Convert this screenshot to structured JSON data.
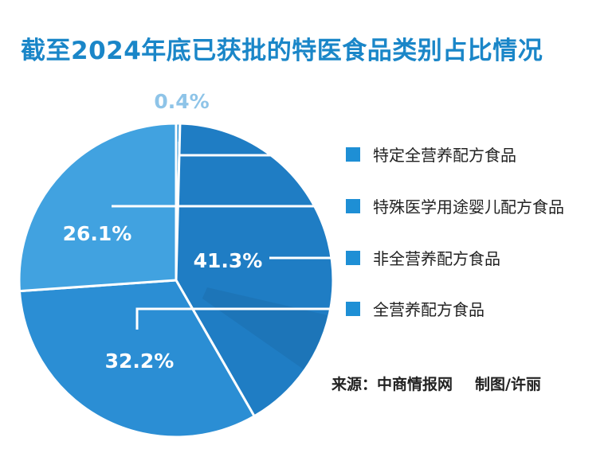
{
  "title": "截至2024年底已获批的特医食品类别占比情况",
  "chart_data": {
    "type": "pie",
    "title": "截至2024年底已获批的特医食品类别占比情况",
    "slices": [
      {
        "label": "特定全营养配方食品",
        "value": 0.4,
        "value_label": "0.4%",
        "color": "#2d93d6"
      },
      {
        "label": "非全营养配方食品",
        "value": 41.3,
        "value_label": "41.3%",
        "color": "#1f7dc4"
      },
      {
        "label": "全营养配方食品",
        "value": 32.2,
        "value_label": "32.2%",
        "color": "#2b8ed4"
      },
      {
        "label": "特殊医学用途婴儿配方食品",
        "value": 26.1,
        "value_label": "26.1%",
        "color": "#41a2e0"
      }
    ],
    "legend": [
      "特定全营养配方食品",
      "特殊医学用途婴儿配方食品",
      "非全营养配方食品",
      "全营养配方食品"
    ],
    "legend_placement": "right",
    "legend_color": "#1e8fd5",
    "start": "top",
    "direction": "clockwise"
  },
  "source": {
    "text": "来源：中商情报网",
    "credit": "制图/许丽"
  }
}
